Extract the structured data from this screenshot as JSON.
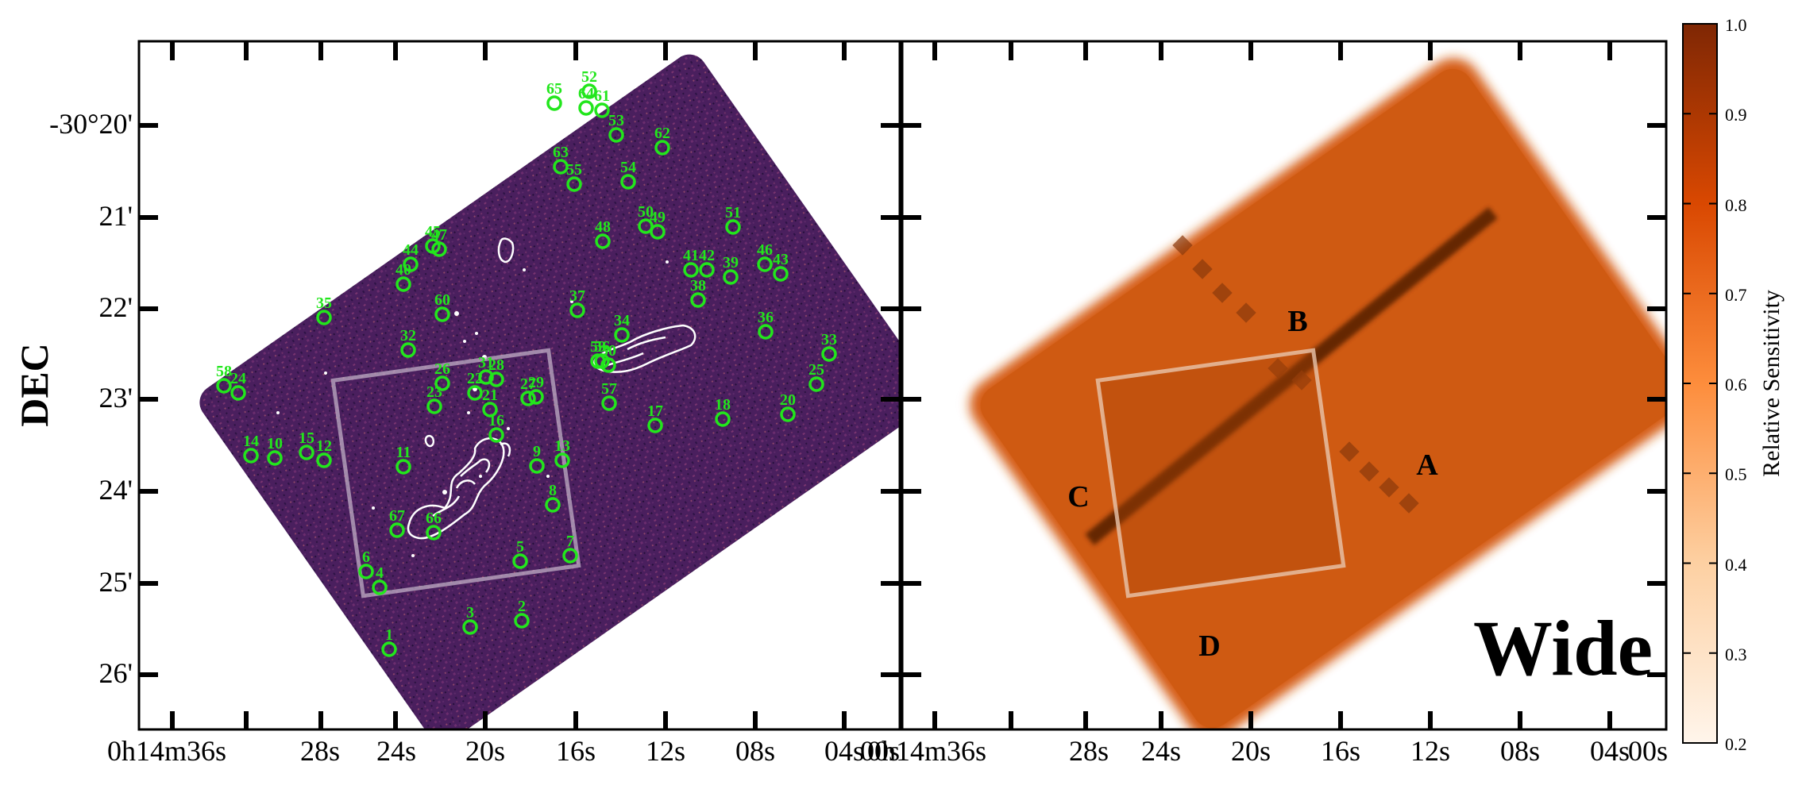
{
  "figure": {
    "ylabel": "DEC",
    "ra_tick_labels": [
      "0h14m36s",
      "28s",
      "24s",
      "20s",
      "16s",
      "12s",
      "08s",
      "04s",
      "00s"
    ],
    "dec_tick_labels": [
      "-30°20'",
      "21'",
      "22'",
      "23'",
      "24'",
      "25'",
      "26'"
    ],
    "left_panel": {
      "sources": [
        "1",
        "2",
        "3",
        "4",
        "5",
        "6",
        "7",
        "8",
        "9",
        "10",
        "11",
        "12",
        "13",
        "14",
        "15",
        "16",
        "17",
        "18",
        "20",
        "21",
        "22",
        "23",
        "24",
        "25",
        "26",
        "27",
        "28",
        "29",
        "30",
        "31",
        "32",
        "33",
        "34",
        "35",
        "36",
        "37",
        "38",
        "39",
        "40",
        "41",
        "42",
        "43",
        "44",
        "45",
        "46",
        "47",
        "48",
        "49",
        "50",
        "51",
        "52",
        "53",
        "54",
        "55",
        "56",
        "57",
        "58",
        "59",
        "60",
        "61",
        "62",
        "63",
        "64",
        "65",
        "66",
        "67"
      ],
      "colors": {
        "background_noise": "#4a1f5e",
        "contours": "#ffffff",
        "markers": "#22e61c",
        "box": "#c8b8cc"
      }
    },
    "right_panel": {
      "title": "Wide",
      "region_labels": [
        "A",
        "B",
        "C",
        "D"
      ],
      "colors": {
        "field": "#cf5a12",
        "stripe": "#5a2406",
        "box": "#e8c6ad"
      }
    },
    "colorbar": {
      "label": "Relative Sensitivity",
      "ticks": [
        "1.0",
        "0.9",
        "0.8",
        "0.7",
        "0.6",
        "0.5",
        "0.4",
        "0.3",
        "0.2"
      ],
      "range": [
        0.2,
        1.0
      ],
      "colors": [
        "#fff5eb",
        "#fdd0a2",
        "#fd8d3c",
        "#d94801",
        "#7f2704"
      ]
    }
  }
}
